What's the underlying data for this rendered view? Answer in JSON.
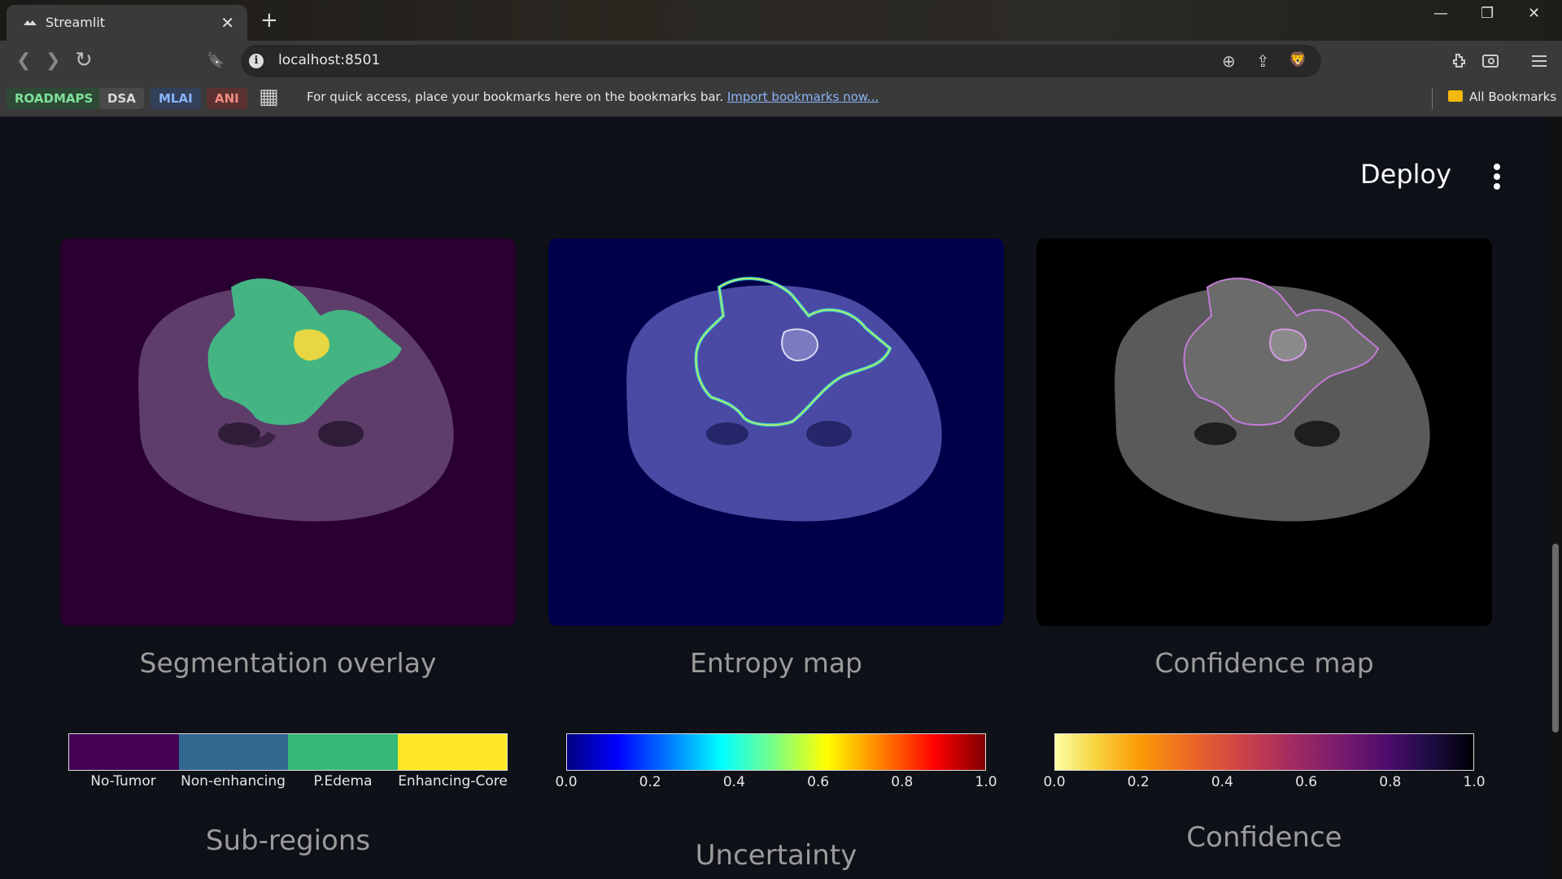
{
  "browser": {
    "tab_title": "Streamlit",
    "tab_close": "✕",
    "new_tab": "+",
    "url": "localhost:8501",
    "info_glyph": "i",
    "window_controls": {
      "minimize": "—",
      "restore": "❐",
      "close": "✕"
    },
    "nav_icons": {
      "back": "❮",
      "forward": "❯",
      "reload": "↻",
      "bookmark": "🔖"
    },
    "omnibox_icons": {
      "zoom": "⊕",
      "share": "⇪",
      "brave": "🦁"
    },
    "bookmark_chips": [
      {
        "label": "ROADMAPS",
        "bg": "#2e4a36",
        "fg": "#7ee29b"
      },
      {
        "label": "DSA",
        "bg": "#4a4a4a",
        "fg": "#d8d8d8"
      },
      {
        "label": "MLAI",
        "bg": "#33405a",
        "fg": "#8ab4f8"
      },
      {
        "label": "ANI",
        "bg": "#5a3030",
        "fg": "#f28b82"
      }
    ],
    "apps_icon": "▦",
    "bookmarks_hint": "For quick access, place your bookmarks here on the bookmarks bar.",
    "import_link": "Import bookmarks now...",
    "all_bookmarks": "All Bookmarks"
  },
  "app": {
    "deploy_label": "Deploy",
    "panels": [
      {
        "caption": "Segmentation overlay",
        "bg": "#2a0030"
      },
      {
        "caption": "Entropy map",
        "bg": "#00004a"
      },
      {
        "caption": "Confidence map",
        "bg": "#000000"
      }
    ],
    "colorbars": [
      {
        "title": "Sub-regions",
        "type": "categorical",
        "categories": [
          "No-Tumor",
          "Non-enhancing",
          "P.Edema",
          "Enhancing-Core"
        ],
        "colors": [
          "#440154",
          "#31688e",
          "#35b779",
          "#fde725"
        ]
      },
      {
        "title": "Uncertainty",
        "type": "continuous",
        "colormap": "jet",
        "ticks": [
          "0.0",
          "0.2",
          "0.4",
          "0.6",
          "0.8",
          "1.0"
        ]
      },
      {
        "title": "Confidence",
        "type": "continuous",
        "colormap": "inferno_r",
        "ticks": [
          "0.0",
          "0.2",
          "0.4",
          "0.6",
          "0.8",
          "1.0"
        ]
      }
    ]
  }
}
